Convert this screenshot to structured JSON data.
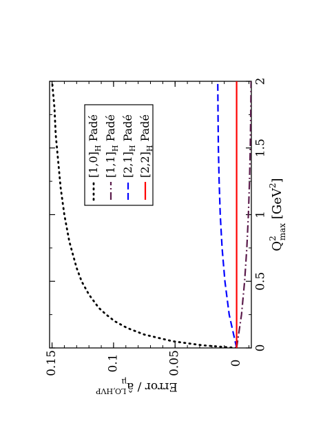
{
  "chart_data": {
    "type": "line",
    "orientation": "rotated-90-clockwise",
    "xlabel_main": "Q",
    "xlabel_sup": "2",
    "xlabel_sub": "max",
    "xlabel_unit_open": " [GeV",
    "xlabel_unit_sup": "2",
    "xlabel_unit_close": "]",
    "ylabel_main": "Error / ",
    "ylabel_sym": "â",
    "ylabel_sub": "μ",
    "ylabel_sup": "LO,HVP",
    "xlim": [
      0,
      2
    ],
    "ylim": [
      -0.012,
      0.152
    ],
    "x_ticks": [
      0,
      0.5,
      1,
      1.5,
      2
    ],
    "x_tick_labels": [
      "0",
      "0.5",
      "1",
      "1.5",
      "2"
    ],
    "y_ticks": [
      0,
      0.05,
      0.1,
      0.15
    ],
    "y_tick_labels": [
      "0",
      "0.05",
      "0.1",
      "0.15"
    ],
    "legend_position": "upper-left",
    "series": [
      {
        "name": "[1,0]",
        "name_sub": "H",
        "name_suffix": " Padé",
        "style": "dotted",
        "color": "#000000",
        "x": [
          0,
          0.02,
          0.05,
          0.1,
          0.15,
          0.2,
          0.25,
          0.3,
          0.4,
          0.5,
          0.6,
          0.7,
          0.8,
          1.0,
          1.2,
          1.4,
          1.6,
          1.8,
          2.0
        ],
        "y": [
          0,
          0.028,
          0.052,
          0.075,
          0.089,
          0.099,
          0.106,
          0.112,
          0.12,
          0.126,
          0.13,
          0.133,
          0.136,
          0.14,
          0.143,
          0.145,
          0.147,
          0.148,
          0.15
        ]
      },
      {
        "name": "[1,1]",
        "name_sub": "H",
        "name_suffix": " Padé",
        "style": "dash-dot",
        "color": "#5a1a4a",
        "x": [
          0,
          0.25,
          0.5,
          0.75,
          1.0,
          1.25,
          1.5,
          1.75,
          2.0
        ],
        "y": [
          0,
          -0.004,
          -0.0065,
          -0.0083,
          -0.0096,
          -0.0105,
          -0.0111,
          -0.0115,
          -0.0118
        ]
      },
      {
        "name": "[2,1]",
        "name_sub": "H",
        "name_suffix": " Padé",
        "style": "dashed",
        "color": "#0000ff",
        "x": [
          0,
          0.25,
          0.5,
          0.75,
          1.0,
          1.25,
          1.5,
          1.75,
          2.0
        ],
        "y": [
          0,
          0.006,
          0.0095,
          0.0118,
          0.0133,
          0.0142,
          0.0148,
          0.0151,
          0.0153
        ]
      },
      {
        "name": "[2,2]",
        "name_sub": "H",
        "name_suffix": " Padé",
        "style": "solid",
        "color": "#ff0000",
        "x": [
          0,
          0.5,
          1.0,
          1.5,
          2.0
        ],
        "y": [
          0,
          0,
          0,
          0,
          0
        ]
      }
    ]
  }
}
